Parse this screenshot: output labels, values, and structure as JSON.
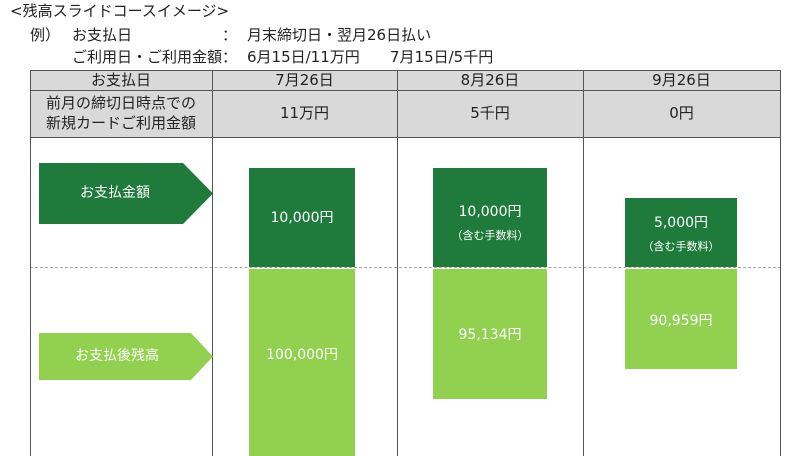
{
  "header": {
    "title": "<残高スライドコースイメージ>",
    "example_label": "例）",
    "rows": [
      {
        "label": "お支払日",
        "sep": "：",
        "value": "月末締切日・翌月26日払い"
      },
      {
        "label": "ご利用日・ご利用金額",
        "sep": "：",
        "value1": "6月15日/11万円",
        "value2": "7月15日/5千円"
      }
    ]
  },
  "table": {
    "col_header": "お支払日",
    "row_header_line1": "前月の締切日時点での",
    "row_header_line2": "新規カードご利用金額",
    "columns": [
      {
        "date": "7月26日",
        "usage": "11万円",
        "payment": "10,000円",
        "payment_note": "",
        "balance": "100,000円"
      },
      {
        "date": "8月26日",
        "usage": "5千円",
        "payment": "10,000円",
        "payment_note": "（含む手数料）",
        "balance": "95,134円"
      },
      {
        "date": "9月26日",
        "usage": "0円",
        "payment": "5,000円",
        "payment_note": "（含む手数料）",
        "balance": "90,959円"
      }
    ],
    "row_labels": {
      "payment": "お支払金額",
      "balance": "お支払後残高"
    }
  },
  "colors": {
    "payment": "#1e7b3c",
    "balance": "#92d050",
    "header_bg": "#d9d9d9"
  }
}
